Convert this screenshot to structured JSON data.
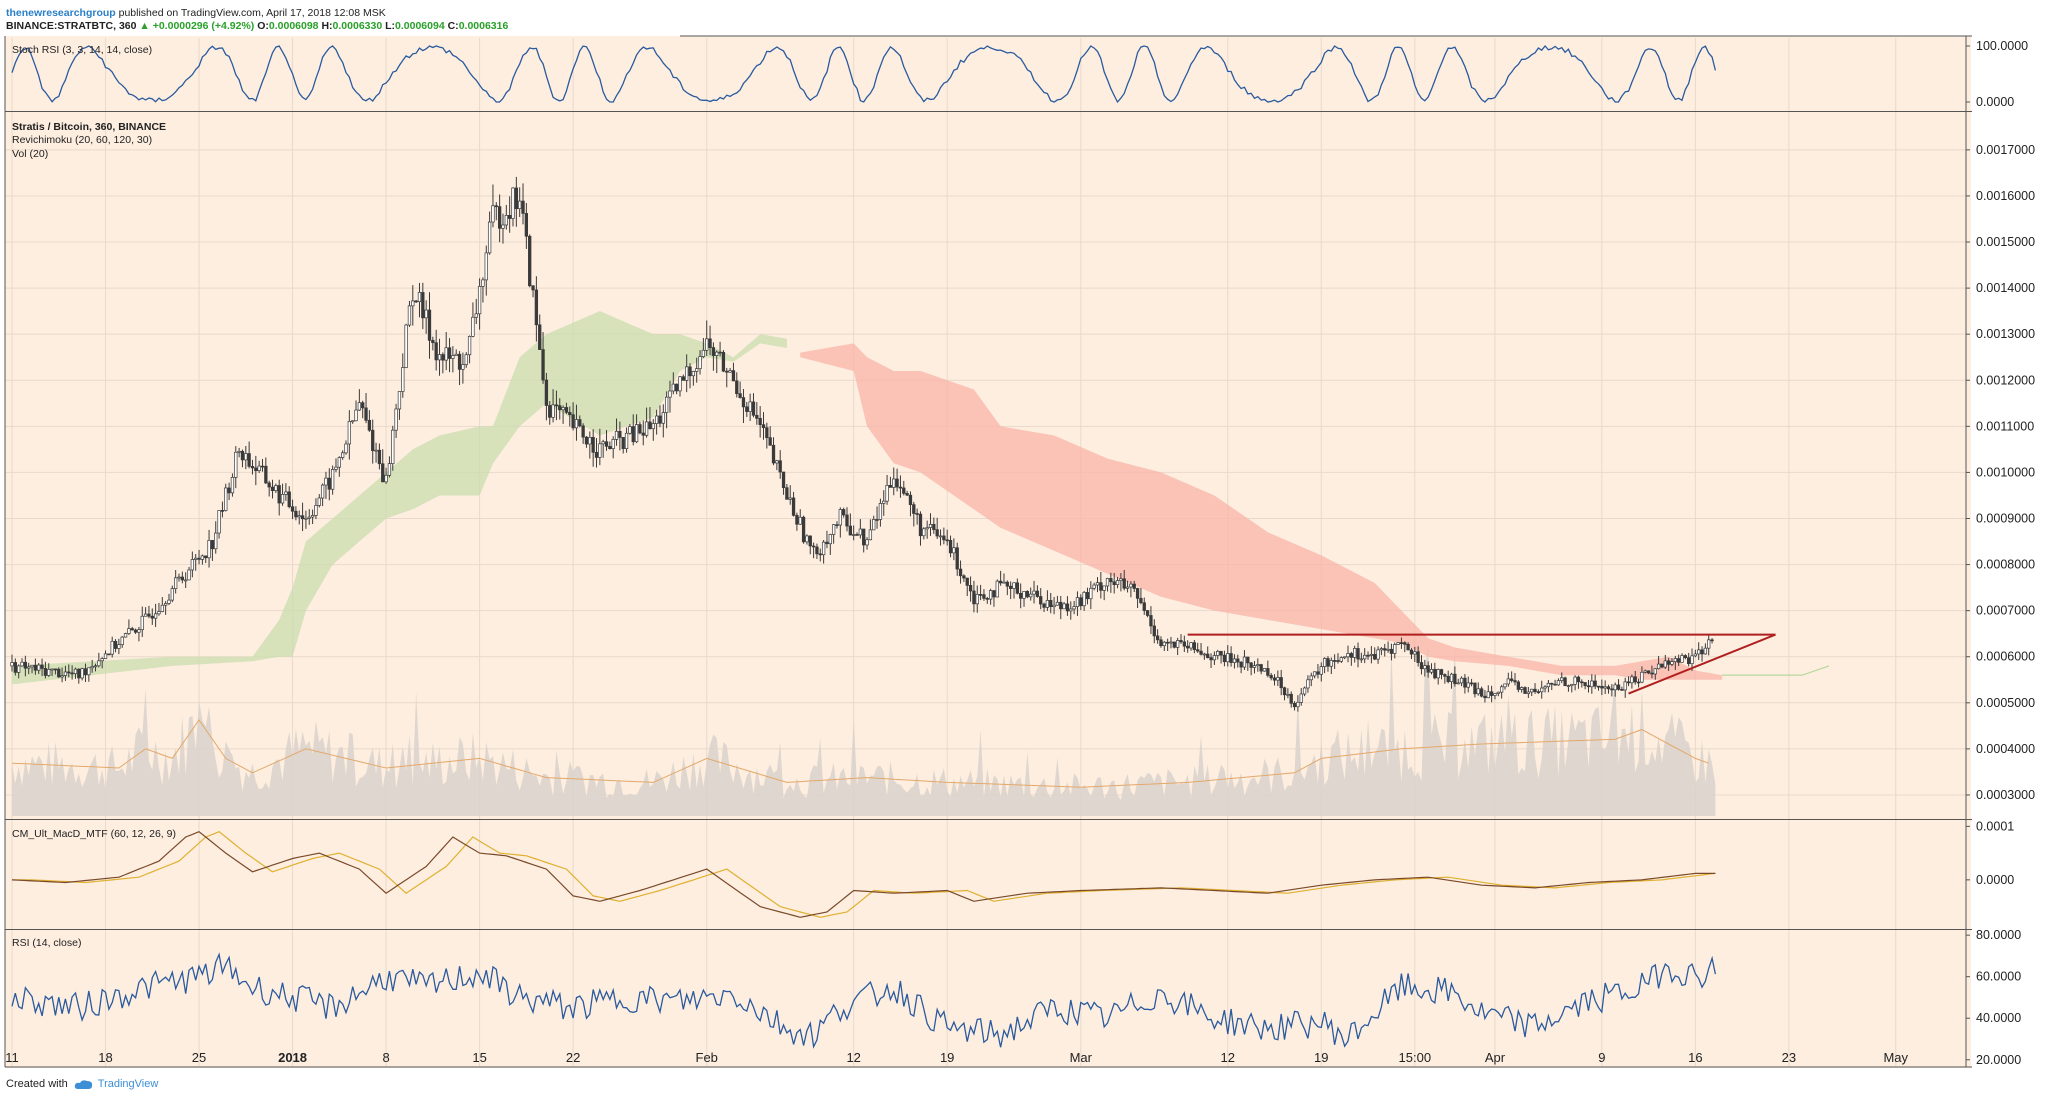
{
  "header": {
    "author": "thenewresearchgroup",
    "published": "published on TradingView.com, April 17, 2018 12:08 MSK",
    "symbol": "BINANCE:STRATBTC, 360",
    "change": "▲ +0.0000296 (+4.92%)",
    "o_label": "O:",
    "o": "0.0006098",
    "h_label": "H:",
    "h": "0.0006330",
    "l_label": "L:",
    "l": "0.0006094",
    "c_label": "C:",
    "c": "0.0006316"
  },
  "footer": {
    "created_with": "Created with",
    "brand": "TradingView"
  },
  "colors": {
    "background": "#fdeee0",
    "grid": "#e9d9cb",
    "candle": "#3a3a3a",
    "cloud_bull": "#c9dcae",
    "cloud_bear": "#f9b3a8",
    "triangle": "#b01e1e",
    "osc_line": "#2a5a9e",
    "macd_line": "#7a4a2a",
    "signal_line": "#e0b030",
    "volume": "#d9d2cb"
  },
  "chart_data": [
    {
      "type": "candlestick",
      "title": "Stratis / Bitcoin, 360, BINANCE",
      "indicators": [
        "Revichimoku (20, 60, 120, 30)",
        "Vol (20)"
      ],
      "ylim": [
        0.00025,
        0.00178
      ],
      "y_ticks": [
        "0.0017000",
        "0.0016000",
        "0.0015000",
        "0.0014000",
        "0.0013000",
        "0.0012000",
        "0.0011000",
        "0.0010000",
        "0.0009000",
        "0.0008000",
        "0.0007000",
        "0.0006000",
        "0.0005000",
        "0.0004000",
        "0.0003000"
      ],
      "x_tick_labels": [
        "11",
        "18",
        "25",
        "2018",
        "8",
        "15",
        "22",
        "Feb",
        "12",
        "19",
        "Mar",
        "12",
        "19",
        "15:00",
        "Apr",
        "9",
        "16",
        "23",
        "May"
      ],
      "x_ticks_day": [
        0,
        7,
        14,
        21,
        28,
        35,
        42,
        52,
        63,
        70,
        80,
        91,
        98,
        105,
        111,
        119,
        126,
        133,
        141
      ],
      "price_trend_day": [
        0,
        5,
        10,
        15,
        17,
        20,
        22,
        24,
        26,
        28,
        30,
        32,
        34,
        36,
        38,
        40,
        44,
        48,
        52,
        54,
        56,
        58,
        60,
        62,
        64,
        66,
        68,
        70,
        72,
        74,
        76,
        78,
        80,
        82,
        84,
        86,
        88,
        90,
        92,
        94,
        96,
        98,
        100,
        102,
        104,
        106,
        108,
        110,
        112,
        114,
        116,
        118,
        120,
        122,
        124,
        126,
        127
      ],
      "price_trend": [
        0.00058,
        0.00056,
        0.00068,
        0.00085,
        0.00105,
        0.00095,
        0.0009,
        0.00099,
        0.00115,
        0.00098,
        0.0014,
        0.00125,
        0.00124,
        0.00155,
        0.0016,
        0.00115,
        0.00105,
        0.0011,
        0.00128,
        0.0012,
        0.0011,
        0.00095,
        0.00082,
        0.0009,
        0.00085,
        0.001,
        0.00088,
        0.00085,
        0.00073,
        0.00075,
        0.00074,
        0.00071,
        0.00072,
        0.00077,
        0.00074,
        0.00063,
        0.00062,
        0.0006,
        0.00059,
        0.00057,
        0.0005,
        0.00058,
        0.00061,
        0.0006,
        0.00063,
        0.00057,
        0.00055,
        0.00052,
        0.00054,
        0.00052,
        0.00055,
        0.00054,
        0.00053,
        0.00056,
        0.00059,
        0.0006,
        0.00063
      ],
      "cloud_bull": {
        "day": [
          0,
          12,
          18,
          20,
          21,
          22,
          24,
          26,
          28,
          30,
          32,
          35,
          36,
          38,
          40,
          44,
          48,
          50,
          52,
          54,
          56,
          58
        ],
        "top": [
          0.00058,
          0.0006,
          0.0006,
          0.00068,
          0.00075,
          0.00085,
          0.0009,
          0.00095,
          0.001,
          0.00105,
          0.00108,
          0.0011,
          0.0011,
          0.00125,
          0.0013,
          0.00135,
          0.0013,
          0.0013,
          0.00128,
          0.00125,
          0.0013,
          0.00129
        ],
        "bottom": [
          0.00054,
          0.00058,
          0.00059,
          0.0006,
          0.0006,
          0.0007,
          0.0008,
          0.00085,
          0.0009,
          0.00092,
          0.00095,
          0.00095,
          0.00102,
          0.0011,
          0.00115,
          0.00108,
          0.00112,
          0.00122,
          0.00125,
          0.00124,
          0.00128,
          0.00127
        ]
      },
      "cloud_bear": {
        "day": [
          59,
          63,
          64,
          66,
          68,
          72,
          74,
          78,
          82,
          86,
          90,
          94,
          98,
          102,
          104,
          106,
          108,
          112,
          116,
          120,
          122,
          124,
          126,
          128
        ],
        "top": [
          0.00126,
          0.00128,
          0.00125,
          0.00122,
          0.00122,
          0.00118,
          0.0011,
          0.00108,
          0.00103,
          0.001,
          0.00095,
          0.00087,
          0.00082,
          0.00076,
          0.0007,
          0.00064,
          0.00062,
          0.0006,
          0.00058,
          0.00058,
          0.00059,
          0.0006,
          0.00057,
          0.00056
        ],
        "bottom": [
          0.00125,
          0.00122,
          0.0011,
          0.00102,
          0.001,
          0.00092,
          0.00088,
          0.00083,
          0.00078,
          0.00073,
          0.0007,
          0.00068,
          0.00066,
          0.00064,
          0.00063,
          0.0006,
          0.00059,
          0.00058,
          0.00056,
          0.00056,
          0.00055,
          0.00055,
          0.00055,
          0.00055
        ]
      },
      "triangle": {
        "resistance": {
          "day": [
            88,
            132
          ],
          "value": [
            0.000648,
            0.000648
          ]
        },
        "support": {
          "day": [
            121,
            132
          ],
          "value": [
            0.00052,
            0.000648
          ]
        }
      },
      "volume": {
        "day": [
          0,
          8,
          10,
          12,
          14,
          16,
          18,
          22,
          28,
          35,
          40,
          48,
          52,
          58,
          64,
          70,
          80,
          88,
          96,
          98,
          104,
          110,
          120,
          122,
          126,
          128
        ],
        "value": [
          0.55,
          0.5,
          0.7,
          0.6,
          1.0,
          0.6,
          0.45,
          0.7,
          0.5,
          0.6,
          0.4,
          0.35,
          0.6,
          0.35,
          0.4,
          0.35,
          0.3,
          0.35,
          0.45,
          0.6,
          0.7,
          0.75,
          0.8,
          0.9,
          0.6,
          0.5
        ]
      }
    },
    {
      "type": "line",
      "title": "Stoch RSI (3, 3, 14, 14, close)",
      "ylim": [
        0,
        100
      ],
      "y_ticks": [
        "100.0000",
        "0.0000"
      ],
      "note": "oscillating between 0 and 100"
    },
    {
      "type": "line",
      "title": "CM_Ult_MacD_MTF (60, 12, 26, 9)",
      "ylim": [
        -9e-05,
        0.00011
      ],
      "y_ticks": [
        "0.0001",
        "0.0000"
      ],
      "macd_day": [
        0,
        4,
        8,
        11,
        13,
        14,
        16,
        18,
        21,
        23,
        26,
        28,
        31,
        33,
        35,
        37,
        40,
        42,
        44,
        47,
        52,
        56,
        59,
        61,
        63,
        66,
        70,
        72,
        76,
        80,
        86,
        90,
        94,
        98,
        102,
        106,
        110,
        114,
        118,
        122,
        126,
        128
      ],
      "macd": [
        0.0,
        -5e-06,
        5e-06,
        3.5e-05,
        8e-05,
        9e-05,
        5e-05,
        1.5e-05,
        4e-05,
        5e-05,
        2e-05,
        -2.5e-05,
        2.5e-05,
        8e-05,
        5e-05,
        4.5e-05,
        2e-05,
        -3e-05,
        -4e-05,
        -2e-05,
        2e-05,
        -5e-05,
        -7e-05,
        -6e-05,
        -2e-05,
        -2.5e-05,
        -2e-05,
        -4e-05,
        -2.5e-05,
        -2e-05,
        -1.5e-05,
        -2e-05,
        -2.5e-05,
        -1e-05,
        0.0,
        5e-06,
        -1e-05,
        -1.5e-05,
        -5e-06,
        0.0,
        1.2e-05,
        1.2e-05
      ],
      "signal_offset_days": 1.5
    },
    {
      "type": "line",
      "title": "RSI (14, close)",
      "ylim": [
        17,
        82
      ],
      "y_ticks": [
        "80.0000",
        "60.0000",
        "40.0000",
        "20.0000"
      ],
      "rsi_trend_day": [
        0,
        5,
        10,
        14,
        16,
        18,
        21,
        24,
        28,
        31,
        35,
        38,
        42,
        46,
        50,
        54,
        58,
        60,
        62,
        66,
        70,
        74,
        78,
        82,
        86,
        90,
        94,
        98,
        100,
        104,
        108,
        110,
        114,
        118,
        122,
        124,
        126,
        128
      ],
      "rsi_trend": [
        50,
        45,
        55,
        60,
        65,
        55,
        50,
        45,
        60,
        55,
        62,
        50,
        45,
        50,
        48,
        52,
        35,
        32,
        45,
        55,
        35,
        32,
        45,
        40,
        52,
        40,
        35,
        38,
        30,
        55,
        52,
        42,
        36,
        48,
        55,
        65,
        60,
        66
      ]
    }
  ]
}
